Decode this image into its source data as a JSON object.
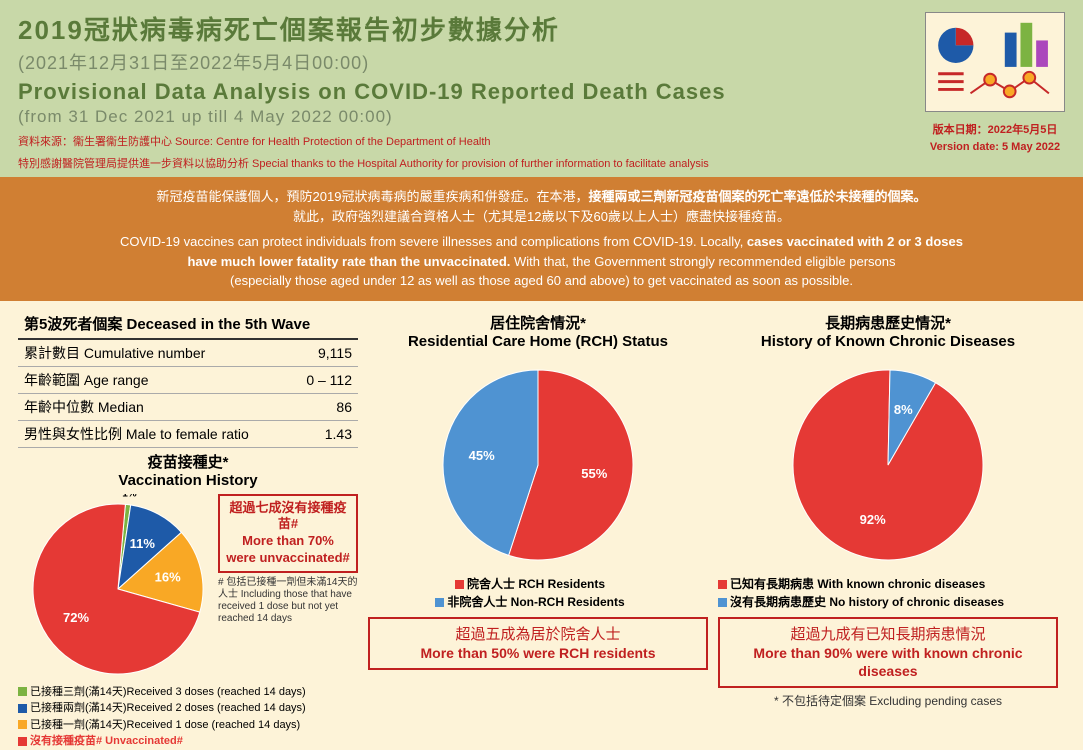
{
  "header": {
    "title_zh": "2019冠狀病毒病死亡個案報告初步數據分析",
    "date_zh": "(2021年12月31日至2022年5月4日00:00)",
    "title_en": "Provisional Data Analysis on COVID-19 Reported Death Cases",
    "date_en": "(from 31 Dec 2021 up till 4 May 2022 00:00)",
    "source_line1": "資料來源：衞生署衞生防護中心  Source: Centre for Health Protection of the Department of Health",
    "source_line2": "特別感謝醫院管理局提供進一步資料以協助分析 Special thanks to the Hospital Authority for provision of further information to facilitate analysis",
    "version_zh": "版本日期：2022年5月5日",
    "version_en": "Version date: 5 May 2022"
  },
  "logo_colors": {
    "pie1": "#c62828",
    "pie2": "#1e5aa8",
    "bar1": "#1e5aa8",
    "bar2": "#7cb342",
    "bar3": "#ab47bc",
    "line": "#c62828",
    "dot": "#f9a825"
  },
  "banner": {
    "zh1": "新冠疫苗能保護個人，預防2019冠狀病毒病的嚴重疾病和併發症。在本港，",
    "zh1b": "接種兩或三劑新冠疫苗個案的死亡率遠低於未接種的個案。",
    "zh2": "就此，政府強烈建議合資格人士（尤其是12歲以下及60歲以上人士）應盡快接種疫苗。",
    "en1": "COVID-19 vaccines can protect individuals from severe illnesses and complications from COVID-19. Locally, ",
    "en1b": "cases vaccinated with 2 or 3 doses",
    "en2b": "have much lower fatality rate than the unvaccinated.",
    "en2": " With that, the Government strongly recommended eligible persons",
    "en3": "(especially those aged under 12 as well as those aged 60 and above) to get vaccinated as soon as possible."
  },
  "stats": {
    "header": "第5波死者個案 Deceased in the 5th Wave",
    "rows": [
      {
        "label": "累計數目 Cumulative number",
        "value": "9,115"
      },
      {
        "label": "年齡範圍 Age range",
        "value": "0 – 112"
      },
      {
        "label": "年齡中位數 Median",
        "value": "86"
      },
      {
        "label": "男性與女性比例 Male to female ratio",
        "value": "1.43"
      }
    ]
  },
  "vax_chart": {
    "type": "pie",
    "title_zh": "疫苗接種史*",
    "title_en": "Vaccination History",
    "slices": [
      {
        "label_zh": "已接種三劑(滿14天)",
        "label_en": "Received 3 doses (reached 14 days)",
        "pct": 1,
        "color": "#7cb342",
        "text": "1%"
      },
      {
        "label_zh": "已接種兩劑(滿14天)",
        "label_en": "Received 2 doses (reached 14 days)",
        "pct": 11,
        "color": "#1e5aa8",
        "text": "11%"
      },
      {
        "label_zh": "已接種一劑(滿14天)",
        "label_en": "Received 1 dose (reached 14 days)",
        "pct": 16,
        "color": "#f9a825",
        "text": "16%"
      },
      {
        "label_zh": "沒有接種疫苗#",
        "label_en": " Unvaccinated#",
        "pct": 72,
        "color": "#e53935",
        "text": "72%"
      }
    ],
    "callout_zh": "超過七成沒有接種疫苗#",
    "callout_en": "More than 70% were unvaccinated#",
    "note": "# 包括已接種一劑但未滿14天的人士 Including those that have received 1 dose but not yet reached 14 days",
    "label_fontsize": 11,
    "pct_fontsize": 12,
    "pct_fontweight": "bold",
    "pct_color_light": "#ffffff",
    "pct_color_dark": "#000000"
  },
  "rch_chart": {
    "type": "pie",
    "title_zh": "居住院舍情況*",
    "title_en": "Residential Care Home (RCH) Status",
    "slices": [
      {
        "label_zh": "院舍人士",
        "label_en": "RCH Residents",
        "pct": 55,
        "color": "#e53935",
        "text": "55%"
      },
      {
        "label_zh": "非院舍人士",
        "label_en": "Non-RCH Residents",
        "pct": 45,
        "color": "#4f93d2",
        "text": "45%"
      }
    ],
    "callout_zh": "超過五成為居於院舍人士",
    "callout_en": "More than 50% were RCH residents"
  },
  "chronic_chart": {
    "type": "pie",
    "title_zh": "長期病患歷史情況*",
    "title_en": "History of Known Chronic Diseases",
    "slices": [
      {
        "label_zh": "已知有長期病患",
        "label_en": "With known chronic diseases",
        "pct": 92,
        "color": "#e53935",
        "text": "92%"
      },
      {
        "label_zh": "沒有長期病患歷史",
        "label_en": "No history of chronic diseases",
        "pct": 8,
        "color": "#4f93d2",
        "text": "8%"
      }
    ],
    "callout_zh": "超過九成有已知長期病患情況",
    "callout_en": "More than 90% were with known chronic diseases"
  },
  "exclude_note": "* 不包括待定個案 Excluding pending cases",
  "colors": {
    "header_bg": "#c8d8a8",
    "body_bg": "#fdf3d8",
    "banner_bg": "#d07f33",
    "title_color": "#5a7a3a",
    "subtitle_color": "#7a8a6a",
    "source_color": "#c02020"
  }
}
